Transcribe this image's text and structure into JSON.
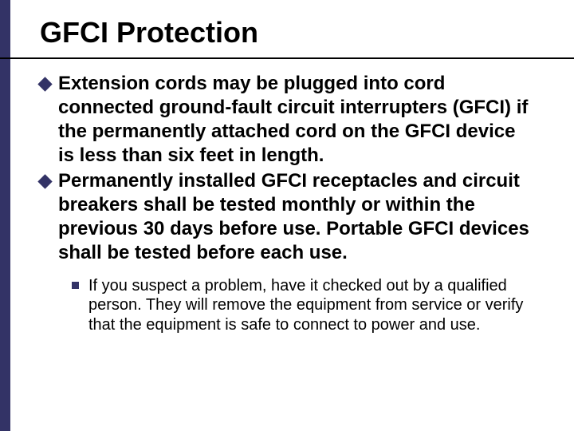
{
  "slide": {
    "title": "GFCI Protection",
    "title_color": "#000000",
    "title_fontsize": 36,
    "accent_bar_color": "#333366",
    "underline_color": "#000000",
    "background_color": "#ffffff",
    "bullets": [
      {
        "marker_color": "#333366",
        "text": "Extension cords may be plugged into cord connected ground-fault circuit interrupters (GFCI) if the permanently attached cord on the GFCI device is less than six feet in length."
      },
      {
        "marker_color": "#333366",
        "text": "Permanently installed GFCI receptacles and circuit breakers shall be tested monthly or within the previous 30 days before use. Portable GFCI devices shall be tested before each use."
      }
    ],
    "sub_bullets": [
      {
        "marker_color": "#333366",
        "text": "If you suspect a problem, have it checked out by a qualified person.  They will remove the equipment from service or verify that the equipment is safe to connect to power and use."
      }
    ]
  }
}
